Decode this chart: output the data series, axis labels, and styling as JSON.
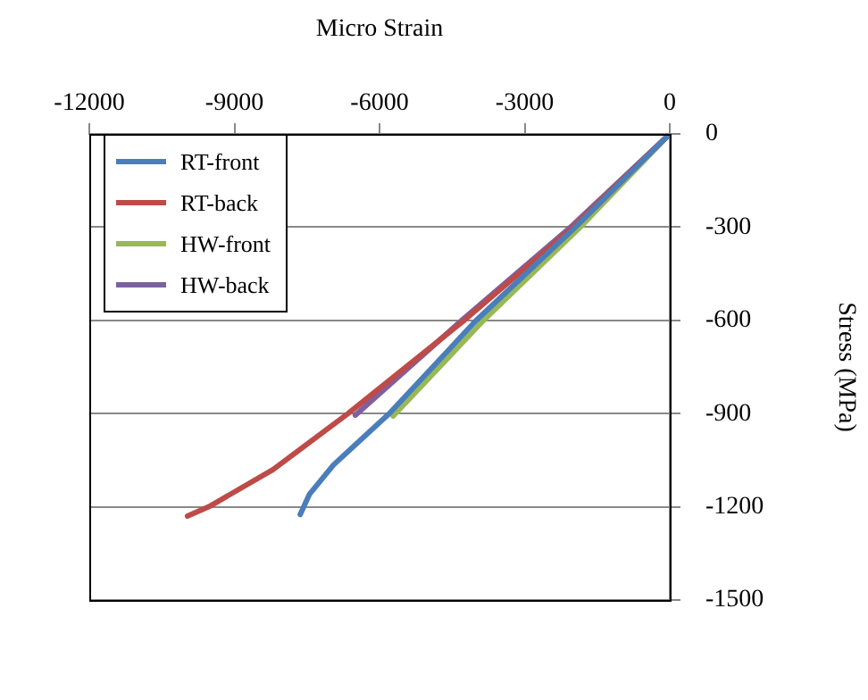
{
  "chart_data": {
    "type": "line",
    "xlabel": "Micro Strain",
    "ylabel": "Stress (MPa)",
    "xlim": [
      -12000,
      0
    ],
    "xticks": [
      -12000,
      -9000,
      -6000,
      -3000,
      0
    ],
    "ylim": [
      -1500,
      0
    ],
    "yticks": [
      -1500,
      -1200,
      -900,
      -600,
      -300,
      0
    ],
    "grid": "y",
    "legend": "top left",
    "marker": "none",
    "line_style": "solid",
    "series": [
      {
        "name": "RT-front",
        "color": "#4a7ebb",
        "x": [
          0,
          -1950,
          -4000,
          -5800,
          -6950,
          -7450,
          -7640
        ],
        "values": [
          0,
          -300,
          -600,
          -900,
          -1065,
          -1160,
          -1225
        ]
      },
      {
        "name": "RT-back",
        "color": "#be4b48",
        "x": [
          0,
          -2000,
          -4250,
          -6650,
          -8200,
          -9530,
          -9970
        ],
        "values": [
          0,
          -300,
          -600,
          -900,
          -1080,
          -1200,
          -1230
        ]
      },
      {
        "name": "HW-front",
        "color": "#98b954",
        "x": [
          0,
          -1850,
          -3850,
          -5720
        ],
        "values": [
          0,
          -300,
          -600,
          -908
        ]
      },
      {
        "name": "HW-back",
        "color": "#7d60a0",
        "x": [
          0,
          -2050,
          -4300,
          -6500
        ],
        "values": [
          0,
          -300,
          -600,
          -905
        ]
      }
    ]
  }
}
